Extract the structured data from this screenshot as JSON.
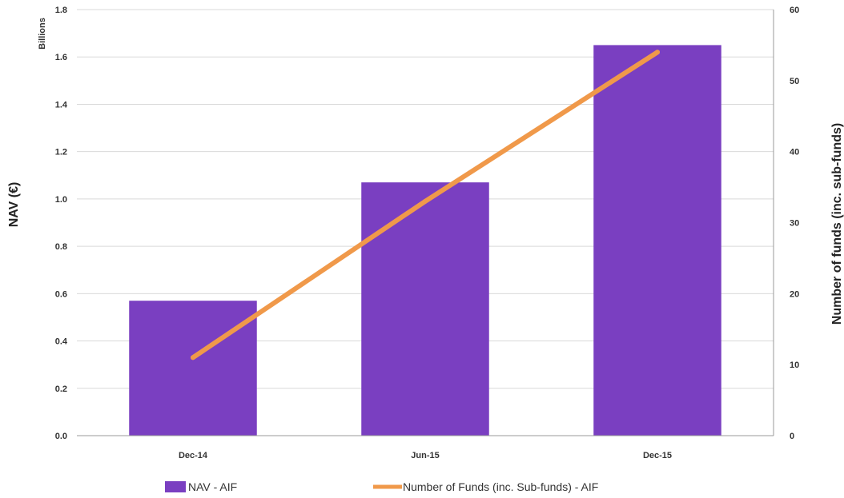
{
  "chart_data": {
    "type": "bar",
    "categories": [
      "Dec-14",
      "Jun-15",
      "Dec-15"
    ],
    "series": [
      {
        "name": "NAV - AIF",
        "type": "bar",
        "axis": "left",
        "values": [
          0.57,
          1.07,
          1.65
        ],
        "color": "#7a3fc1"
      },
      {
        "name": "Number of Funds (inc. Sub-funds) - AIF",
        "type": "line",
        "axis": "right",
        "values": [
          11,
          33,
          54
        ],
        "color": "#f0994a"
      }
    ],
    "ylabel": "NAV (€)",
    "y_units": "Billions",
    "ylabel_right": "Number of funds (inc. sub-funds)",
    "ylim": [
      0,
      1.8
    ],
    "yticks": [
      "0.0",
      "0.2",
      "0.4",
      "0.6",
      "0.8",
      "1.0",
      "1.2",
      "1.4",
      "1.6",
      "1.8"
    ],
    "ylim_right": [
      0,
      60
    ],
    "yticks_right": [
      "0",
      "10",
      "20",
      "30",
      "40",
      "50",
      "60"
    ],
    "grid": true,
    "legend_position": "bottom"
  }
}
